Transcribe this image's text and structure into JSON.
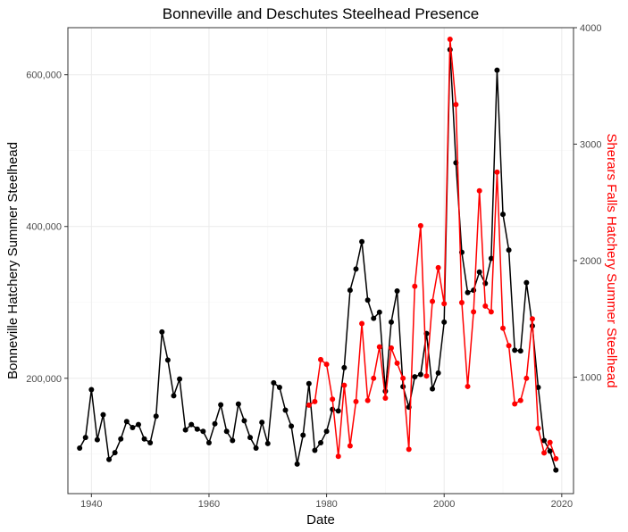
{
  "chart_data": {
    "type": "line",
    "title": "Bonneville and Deschutes Steelhead Presence",
    "xlabel": "Date",
    "ylabel": "Bonneville Hatchery Summer Steelhead",
    "y2label": "Sherars Falls Hatchery Summer Steelhead",
    "xlim": [
      1936,
      2022
    ],
    "ylim": [
      48000,
      662000
    ],
    "y2lim": [
      0,
      4000
    ],
    "x_ticks": [
      "1940",
      "1960",
      "1980",
      "2000",
      "2020"
    ],
    "y_ticks": [
      "200,000",
      "400,000",
      "600,000"
    ],
    "y2_ticks": [
      "1000",
      "2000",
      "3000",
      "4000"
    ],
    "grid": true,
    "series": [
      {
        "axis": "left",
        "color": "#000000",
        "x": [
          1938,
          1939,
          1940,
          1941,
          1942,
          1943,
          1944,
          1945,
          1946,
          1947,
          1948,
          1949,
          1950,
          1951,
          1952,
          1953,
          1954,
          1955,
          1956,
          1957,
          1958,
          1959,
          1960,
          1961,
          1962,
          1963,
          1964,
          1965,
          1966,
          1967,
          1968,
          1969,
          1970,
          1971,
          1972,
          1973,
          1974,
          1975,
          1976,
          1977,
          1978,
          1979,
          1980,
          1981,
          1982,
          1983,
          1984,
          1985,
          1986,
          1987,
          1988,
          1989,
          1990,
          1991,
          1992,
          1993,
          1994,
          1995,
          1996,
          1997,
          1998,
          1999,
          2000,
          2001,
          2002,
          2003,
          2004,
          2005,
          2006,
          2007,
          2008,
          2009,
          2010,
          2011,
          2012,
          2013,
          2014,
          2015,
          2016,
          2017,
          2018,
          2019
        ],
        "y": [
          108000,
          122000,
          185000,
          119000,
          152000,
          93000,
          102000,
          120000,
          143000,
          135000,
          139000,
          120000,
          115000,
          150000,
          261000,
          224000,
          177000,
          199000,
          132000,
          139000,
          133000,
          130000,
          115000,
          140000,
          165000,
          130000,
          118000,
          166000,
          144000,
          122000,
          108000,
          142000,
          114000,
          194000,
          188000,
          158000,
          137000,
          87000,
          125000,
          193000,
          105000,
          115000,
          130000,
          159000,
          157000,
          214000,
          316000,
          344000,
          380000,
          303000,
          279000,
          287000,
          183000,
          274000,
          315000,
          189000,
          162000,
          202000,
          205000,
          259000,
          186000,
          207000,
          274000,
          633000,
          484000,
          366000,
          313000,
          316000,
          340000,
          325000,
          358000,
          606000,
          416000,
          369000,
          237000,
          236000,
          326000,
          269000,
          188000,
          118000,
          104000,
          79000
        ]
      },
      {
        "axis": "right",
        "color": "#ff0000",
        "x": [
          1977,
          1978,
          1979,
          1980,
          1981,
          1982,
          1983,
          1984,
          1985,
          1986,
          1987,
          1988,
          1989,
          1990,
          1991,
          1992,
          1993,
          1994,
          1995,
          1996,
          1997,
          1998,
          1999,
          2000,
          2001,
          2002,
          2003,
          2004,
          2005,
          2006,
          2007,
          2008,
          2009,
          2010,
          2011,
          2012,
          2013,
          2014,
          2015,
          2016,
          2017,
          2018,
          2019
        ],
        "y": [
          760,
          790,
          1150,
          1110,
          810,
          320,
          930,
          410,
          790,
          1460,
          800,
          990,
          1260,
          820,
          1250,
          1120,
          990,
          380,
          1780,
          2300,
          1010,
          1650,
          1940,
          1630,
          3900,
          3340,
          1640,
          920,
          1560,
          2600,
          1610,
          1560,
          2760,
          1420,
          1270,
          770,
          800,
          990,
          1500,
          560,
          350,
          440,
          300
        ]
      }
    ]
  }
}
